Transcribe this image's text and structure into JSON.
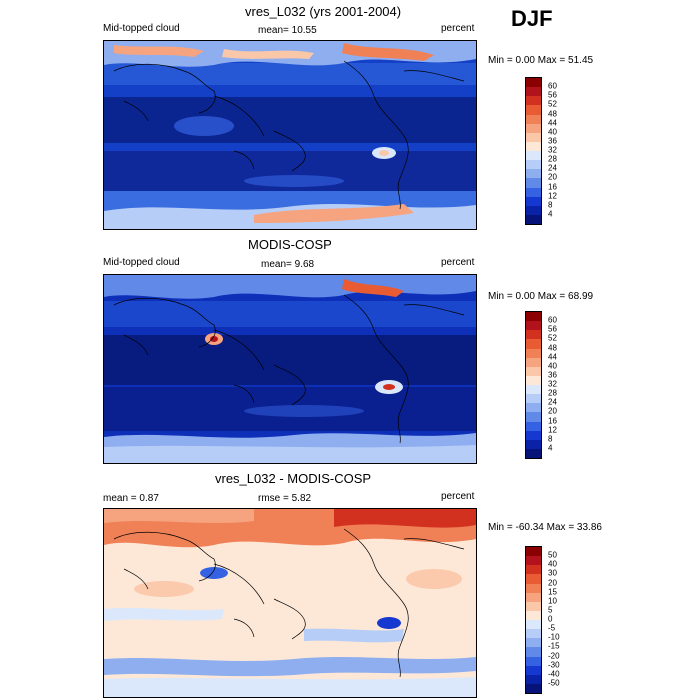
{
  "season": "DJF",
  "panels": [
    {
      "title": "vres_L032 (yrs 2001-2004)",
      "left_label": "Mid-topped cloud",
      "center_label": "mean=  10.55",
      "right_label": "percent",
      "minmax": "Min =   0.00 Max =  51.45",
      "colorbar_labels": [
        "60",
        "56",
        "52",
        "48",
        "44",
        "40",
        "36",
        "32",
        "28",
        "24",
        "20",
        "16",
        "12",
        "8",
        "4"
      ],
      "colorbar_colors": [
        "#8b0000",
        "#b2121b",
        "#d3311f",
        "#e95b33",
        "#f08157",
        "#f6a47f",
        "#fbc7a9",
        "#fde8d8",
        "#dbe8fb",
        "#b6cdf7",
        "#8eaef0",
        "#6089e8",
        "#3462e3",
        "#1538d0",
        "#0a22a8",
        "#06147a"
      ]
    },
    {
      "title": "MODIS-COSP",
      "left_label": "Mid-topped cloud",
      "center_label": "mean=   9.68",
      "right_label": "percent",
      "minmax": "Min =   0.00 Max =  68.99",
      "colorbar_labels": [
        "60",
        "56",
        "52",
        "48",
        "44",
        "40",
        "36",
        "32",
        "28",
        "24",
        "20",
        "16",
        "12",
        "8",
        "4"
      ],
      "colorbar_colors": [
        "#8b0000",
        "#b2121b",
        "#d3311f",
        "#e95b33",
        "#f08157",
        "#f6a47f",
        "#fbc7a9",
        "#fde8d8",
        "#dbe8fb",
        "#b6cdf7",
        "#8eaef0",
        "#6089e8",
        "#3462e3",
        "#1538d0",
        "#0a22a8",
        "#06147a"
      ]
    },
    {
      "title": "vres_L032 - MODIS-COSP",
      "left_label": "mean =   0.87",
      "center_label": "rmse =   5.82",
      "right_label": "percent",
      "minmax": "Min = -60.34 Max =  33.86",
      "colorbar_labels": [
        "50",
        "40",
        "30",
        "20",
        "15",
        "10",
        "5",
        "0",
        "-5",
        "-10",
        "-15",
        "-20",
        "-30",
        "-40",
        "-50"
      ],
      "colorbar_colors": [
        "#8b0000",
        "#b2121b",
        "#d3311f",
        "#e95b33",
        "#f08157",
        "#f6a47f",
        "#fbc7a9",
        "#fde8d8",
        "#dbe8fb",
        "#b6cdf7",
        "#8eaef0",
        "#6089e8",
        "#3462e3",
        "#1538d0",
        "#0a22a8",
        "#06147a"
      ]
    }
  ]
}
